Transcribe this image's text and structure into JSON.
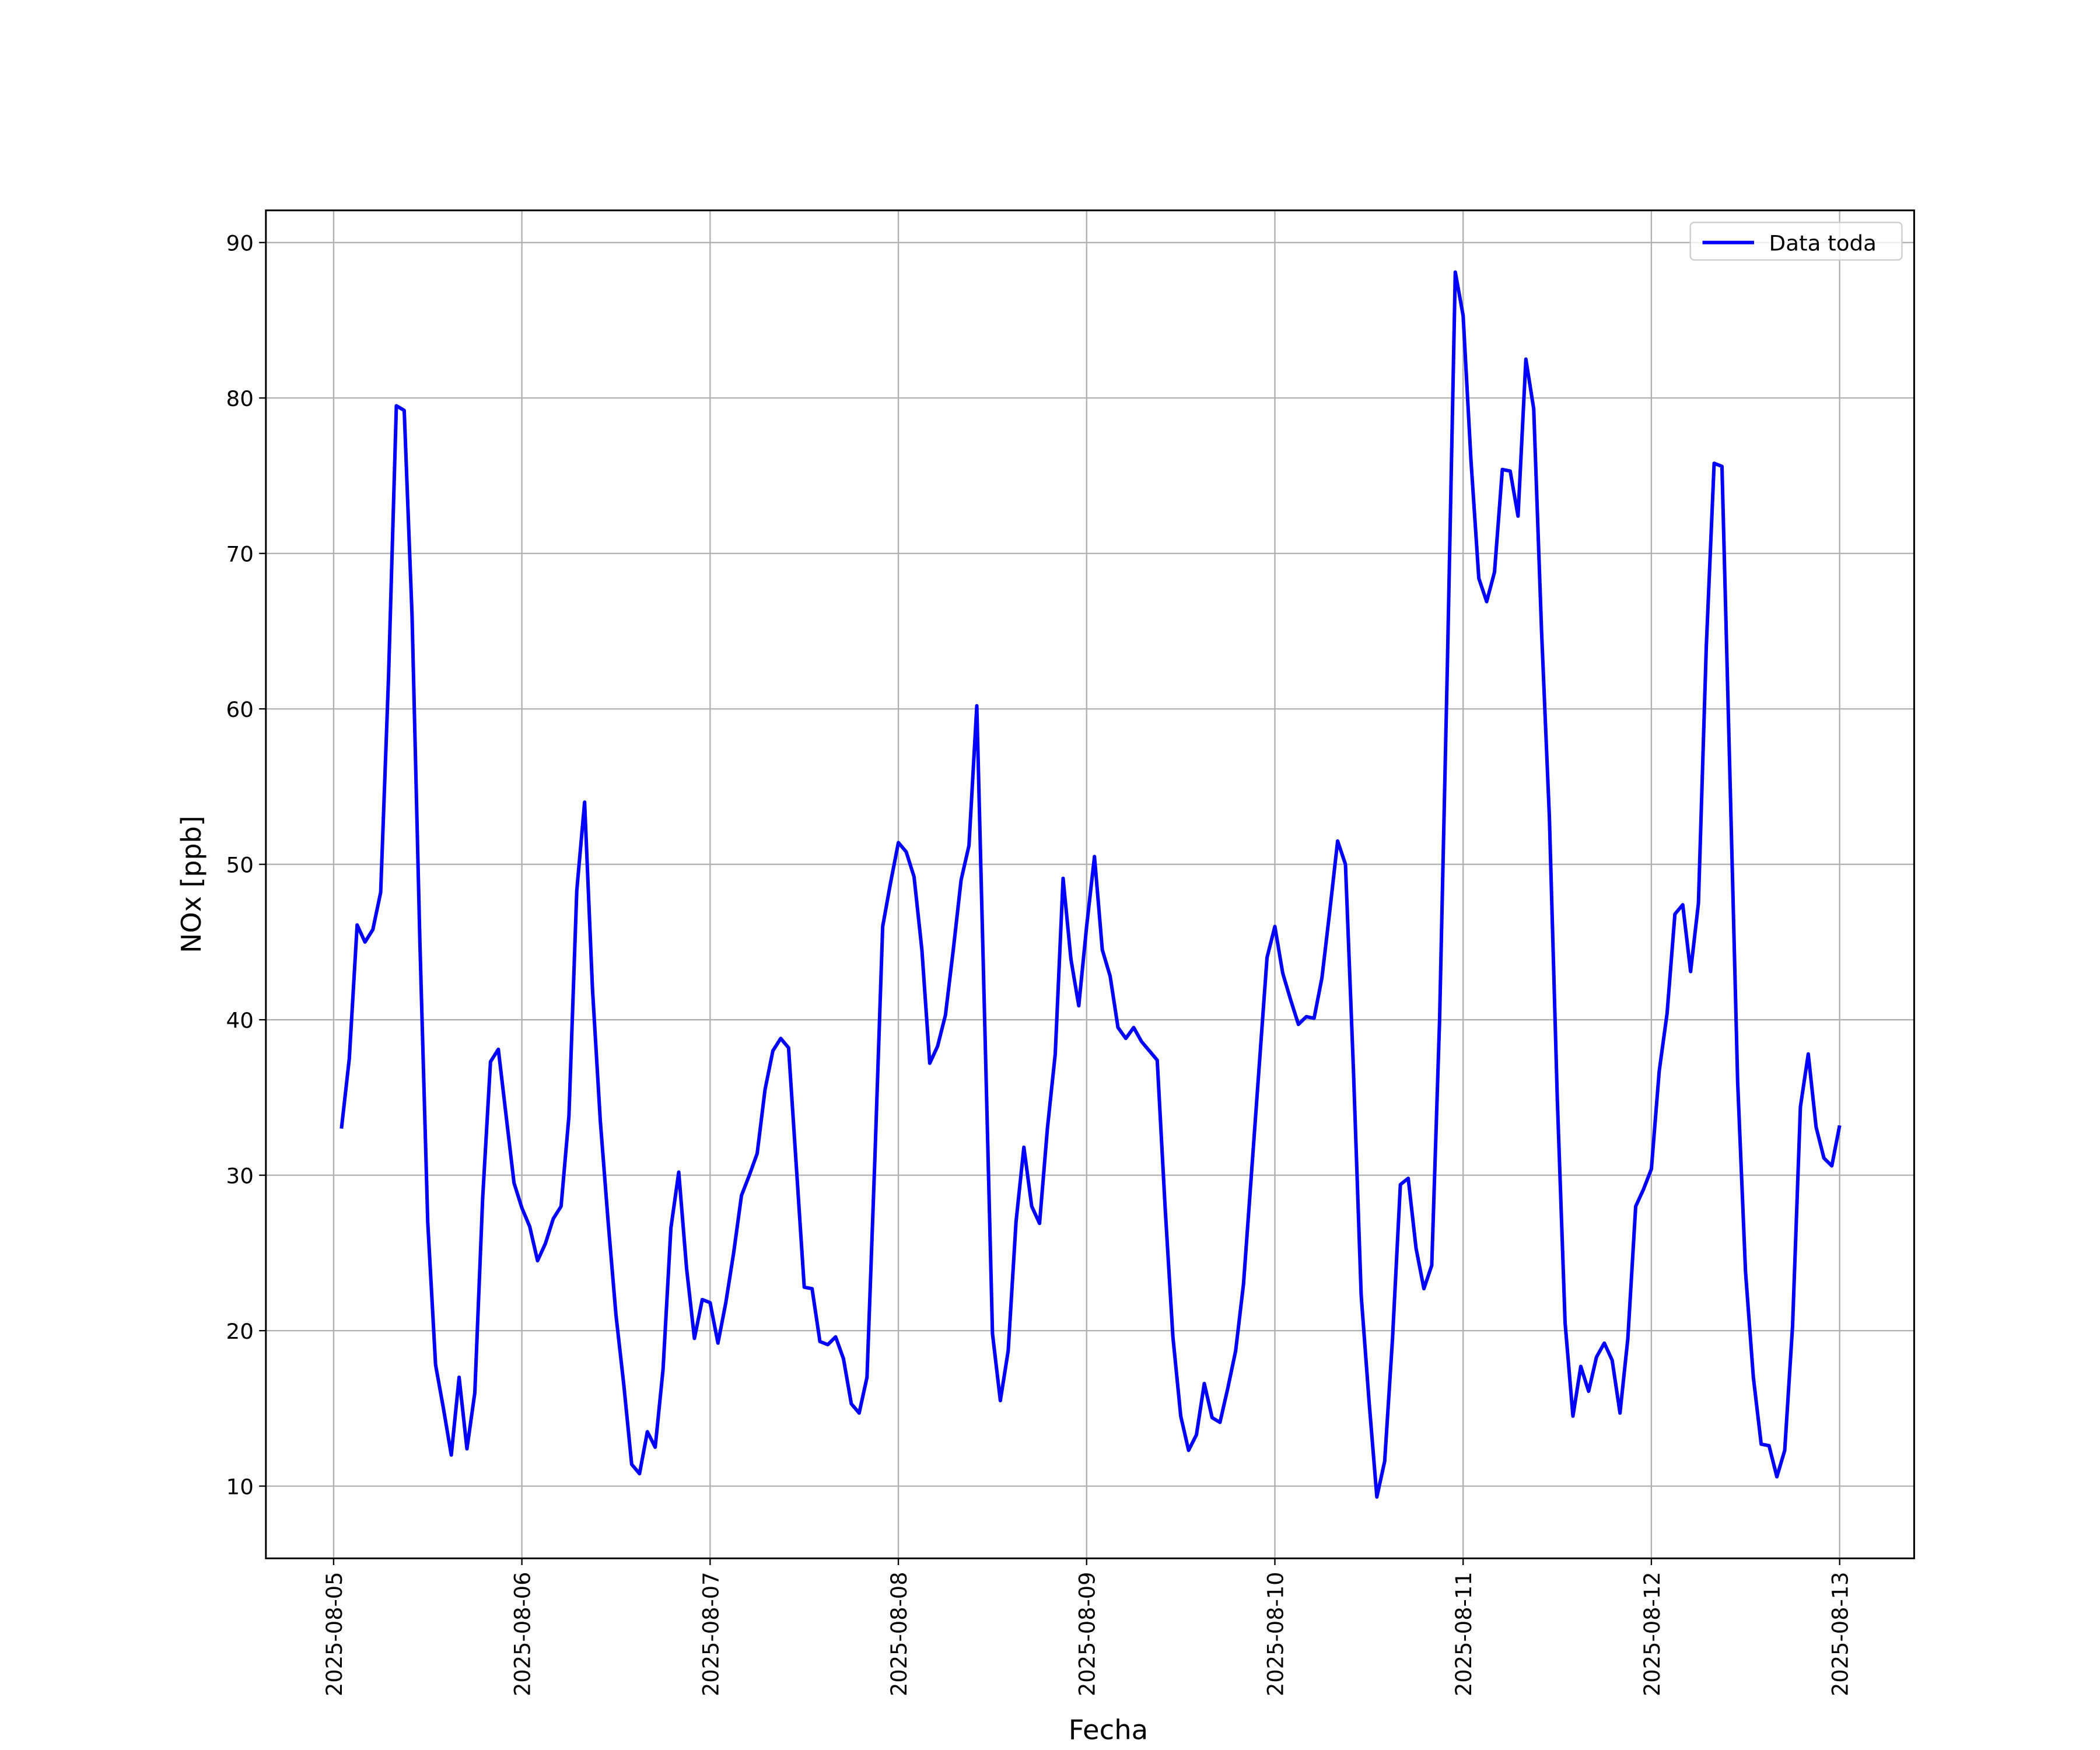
{
  "chart_data": {
    "type": "line",
    "xlabel": "Fecha",
    "ylabel": "NOx [ppb]",
    "grid": true,
    "legend": "upper right",
    "xlim": [
      "2025-08-04 15:22",
      "2025-08-13 09:30"
    ],
    "xticks": [
      "2025-08-05",
      "2025-08-06",
      "2025-08-07",
      "2025-08-08",
      "2025-08-09",
      "2025-08-10",
      "2025-08-11",
      "2025-08-12",
      "2025-08-13"
    ],
    "ylim": [
      5.35,
      92.07
    ],
    "yticks": [
      10,
      20,
      30,
      40,
      50,
      60,
      70,
      80,
      90
    ],
    "x": [
      "2025-08-05 01:00",
      "2025-08-05 02:00",
      "2025-08-05 03:00",
      "2025-08-05 04:00",
      "2025-08-05 05:00",
      "2025-08-05 06:00",
      "2025-08-05 07:00",
      "2025-08-05 08:00",
      "2025-08-05 09:00",
      "2025-08-05 10:00",
      "2025-08-05 11:00",
      "2025-08-05 12:00",
      "2025-08-05 13:00",
      "2025-08-05 14:00",
      "2025-08-05 15:00",
      "2025-08-05 16:00",
      "2025-08-05 17:00",
      "2025-08-05 18:00",
      "2025-08-05 19:00",
      "2025-08-05 20:00",
      "2025-08-05 21:00",
      "2025-08-05 22:00",
      "2025-08-05 23:00",
      "2025-08-06 00:00",
      "2025-08-06 01:00",
      "2025-08-06 02:00",
      "2025-08-06 03:00",
      "2025-08-06 04:00",
      "2025-08-06 05:00",
      "2025-08-06 06:00",
      "2025-08-06 07:00",
      "2025-08-06 08:00",
      "2025-08-06 09:00",
      "2025-08-06 10:00",
      "2025-08-06 11:00",
      "2025-08-06 12:00",
      "2025-08-06 13:00",
      "2025-08-06 14:00",
      "2025-08-06 15:00",
      "2025-08-06 16:00",
      "2025-08-06 17:00",
      "2025-08-06 18:00",
      "2025-08-06 19:00",
      "2025-08-06 20:00",
      "2025-08-06 21:00",
      "2025-08-06 22:00",
      "2025-08-06 23:00",
      "2025-08-07 00:00",
      "2025-08-07 01:00",
      "2025-08-07 02:00",
      "2025-08-07 03:00",
      "2025-08-07 04:00",
      "2025-08-07 05:00",
      "2025-08-07 06:00",
      "2025-08-07 07:00",
      "2025-08-07 08:00",
      "2025-08-07 09:00",
      "2025-08-07 10:00",
      "2025-08-07 11:00",
      "2025-08-07 12:00",
      "2025-08-07 13:00",
      "2025-08-07 14:00",
      "2025-08-07 15:00",
      "2025-08-07 16:00",
      "2025-08-07 17:00",
      "2025-08-07 18:00",
      "2025-08-07 19:00",
      "2025-08-07 20:00",
      "2025-08-07 21:00",
      "2025-08-07 22:00",
      "2025-08-07 23:00",
      "2025-08-08 00:00",
      "2025-08-08 01:00",
      "2025-08-08 02:00",
      "2025-08-08 03:00",
      "2025-08-08 04:00",
      "2025-08-08 05:00",
      "2025-08-08 06:00",
      "2025-08-08 07:00",
      "2025-08-08 08:00",
      "2025-08-08 09:00",
      "2025-08-08 10:00",
      "2025-08-08 11:00",
      "2025-08-08 12:00",
      "2025-08-08 13:00",
      "2025-08-08 14:00",
      "2025-08-08 15:00",
      "2025-08-08 16:00",
      "2025-08-08 17:00",
      "2025-08-08 18:00",
      "2025-08-08 19:00",
      "2025-08-08 20:00",
      "2025-08-08 21:00",
      "2025-08-08 22:00",
      "2025-08-08 23:00",
      "2025-08-09 00:00",
      "2025-08-09 01:00",
      "2025-08-09 02:00",
      "2025-08-09 03:00",
      "2025-08-09 04:00",
      "2025-08-09 05:00",
      "2025-08-09 06:00",
      "2025-08-09 07:00",
      "2025-08-09 08:00",
      "2025-08-09 09:00",
      "2025-08-09 10:00",
      "2025-08-09 11:00",
      "2025-08-09 12:00",
      "2025-08-09 13:00",
      "2025-08-09 14:00",
      "2025-08-09 15:00",
      "2025-08-09 16:00",
      "2025-08-09 17:00",
      "2025-08-09 18:00",
      "2025-08-09 19:00",
      "2025-08-09 20:00",
      "2025-08-09 21:00",
      "2025-08-09 22:00",
      "2025-08-09 23:00",
      "2025-08-10 00:00",
      "2025-08-10 01:00",
      "2025-08-10 02:00",
      "2025-08-10 03:00",
      "2025-08-10 04:00",
      "2025-08-10 05:00",
      "2025-08-10 06:00",
      "2025-08-10 07:00",
      "2025-08-10 08:00",
      "2025-08-10 09:00",
      "2025-08-10 10:00",
      "2025-08-10 11:00",
      "2025-08-10 12:00",
      "2025-08-10 13:00",
      "2025-08-10 14:00",
      "2025-08-10 15:00",
      "2025-08-10 16:00",
      "2025-08-10 17:00",
      "2025-08-10 18:00",
      "2025-08-10 19:00",
      "2025-08-10 20:00",
      "2025-08-10 21:00",
      "2025-08-10 22:00",
      "2025-08-10 23:00",
      "2025-08-11 00:00",
      "2025-08-11 01:00",
      "2025-08-11 02:00",
      "2025-08-11 03:00",
      "2025-08-11 04:00",
      "2025-08-11 05:00",
      "2025-08-11 06:00",
      "2025-08-11 07:00",
      "2025-08-11 08:00",
      "2025-08-11 09:00",
      "2025-08-11 10:00",
      "2025-08-11 11:00",
      "2025-08-11 12:00",
      "2025-08-11 13:00",
      "2025-08-11 14:00",
      "2025-08-11 15:00",
      "2025-08-11 16:00",
      "2025-08-11 17:00",
      "2025-08-11 18:00",
      "2025-08-11 19:00",
      "2025-08-11 20:00",
      "2025-08-11 21:00",
      "2025-08-11 22:00",
      "2025-08-11 23:00",
      "2025-08-12 00:00",
      "2025-08-12 01:00",
      "2025-08-12 02:00",
      "2025-08-12 03:00",
      "2025-08-12 04:00",
      "2025-08-12 05:00",
      "2025-08-12 06:00",
      "2025-08-12 07:00",
      "2025-08-12 08:00",
      "2025-08-12 09:00",
      "2025-08-12 10:00",
      "2025-08-12 11:00",
      "2025-08-12 12:00",
      "2025-08-12 13:00",
      "2025-08-12 14:00",
      "2025-08-12 15:00",
      "2025-08-12 16:00",
      "2025-08-12 17:00",
      "2025-08-12 18:00",
      "2025-08-12 19:00",
      "2025-08-12 20:00",
      "2025-08-12 21:00",
      "2025-08-12 22:00",
      "2025-08-12 23:00",
      "2025-08-13 00:00"
    ],
    "series": [
      {
        "name": "Data toda",
        "color": "#0000ff",
        "values": [
          33,
          37.5,
          46.1,
          45,
          45.8,
          48.2,
          62,
          79.5,
          79.2,
          66,
          45,
          27,
          17.8,
          15,
          12,
          17,
          12.4,
          16,
          28.5,
          37.3,
          38.1,
          33.8,
          29.5,
          27.9,
          26.7,
          24.5,
          25.6,
          27.2,
          28,
          33.8,
          48.3,
          54,
          42,
          33.5,
          27,
          21,
          16.5,
          11.4,
          10.8,
          13.5,
          12.5,
          17.5,
          26.6,
          30.2,
          24,
          19.5,
          22,
          21.8,
          19.2,
          21.8,
          25,
          28.7,
          30,
          31.4,
          35.5,
          38,
          38.8,
          38.2,
          30.5,
          22.8,
          22.7,
          19.3,
          19.1,
          19.6,
          18.2,
          15.3,
          14.7,
          17,
          31,
          46,
          48.8,
          51.4,
          50.8,
          49.2,
          44.5,
          37.2,
          38.3,
          40.3,
          44.5,
          49,
          51.2,
          60.2,
          40,
          19.8,
          15.5,
          18.7,
          27,
          31.8,
          28,
          26.9,
          33,
          37.8,
          49.1,
          43.9,
          40.9,
          46,
          50.5,
          44.5,
          42.8,
          39.5,
          38.8,
          39.5,
          38.6,
          38,
          37.4,
          28,
          19.6,
          14.5,
          12.3,
          13.3,
          16.6,
          14.4,
          14.1,
          16.3,
          18.7,
          23,
          30,
          37,
          44,
          46,
          43,
          41.3,
          39.7,
          40.2,
          40.1,
          42.7,
          47,
          51.5,
          50,
          37,
          22.3,
          15.5,
          9.3,
          11.6,
          19.5,
          29.4,
          29.8,
          25.3,
          22.7,
          24.2,
          40,
          63,
          88.1,
          85.3,
          76,
          68.4,
          66.9,
          68.8,
          75.4,
          75.3,
          72.4,
          82.5,
          79.3,
          65,
          53,
          35,
          20.5,
          14.5,
          17.7,
          16.1,
          18.3,
          19.2,
          18.1,
          14.7,
          19.5,
          28,
          29.1,
          30.4,
          36.7,
          40.4,
          46.8,
          47.4,
          43.1,
          47.5,
          64,
          75.8,
          75.6,
          56,
          36,
          23.8,
          17,
          12.7,
          12.6,
          10.6,
          12.3,
          20.3,
          34.4,
          37.8,
          33.1,
          31.1,
          30.6,
          33.2
        ]
      }
    ]
  }
}
